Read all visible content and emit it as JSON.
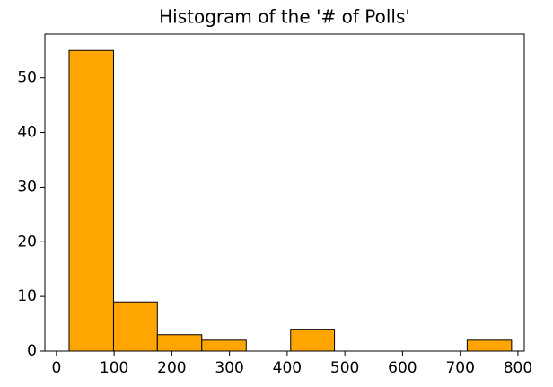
{
  "chart_data": {
    "type": "histogram",
    "title": "Histogram of the '# of Polls'",
    "bins": [
      22,
      99,
      175,
      252,
      329,
      406,
      482,
      559,
      636,
      712,
      789
    ],
    "values": [
      55,
      9,
      3,
      2,
      0,
      4,
      0,
      0,
      0,
      2
    ],
    "color": "#ffa500",
    "edgecolor": "#000000",
    "xlim": [
      -20,
      811
    ],
    "xticks": [
      0,
      100,
      200,
      300,
      400,
      500,
      600,
      700,
      800
    ],
    "ylim": [
      0,
      58
    ],
    "yticks": [
      0,
      10,
      20,
      30,
      40,
      50
    ],
    "grid": false
  }
}
